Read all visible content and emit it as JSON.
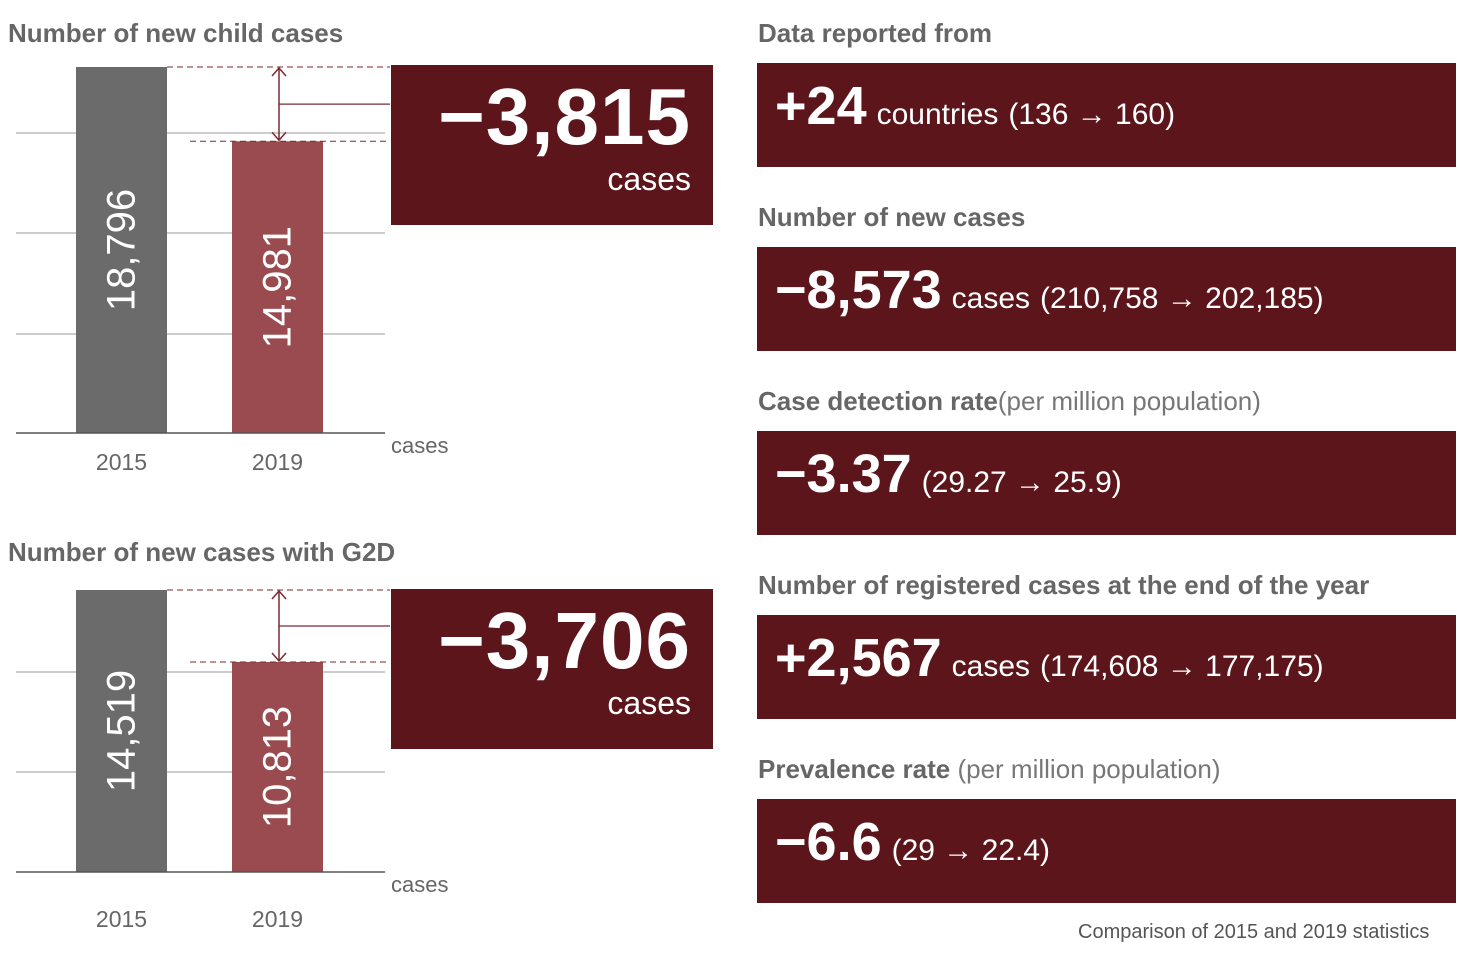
{
  "charts": [
    {
      "title": "Number of new child cases",
      "diff_value": "−3,815",
      "diff_unit": "cases",
      "unit_label": "cases"
    },
    {
      "title": "Number of new cases with G2D",
      "diff_value": "−3,706",
      "diff_unit": "cases",
      "unit_label": "cases"
    }
  ],
  "chart_data": [
    {
      "type": "bar",
      "title": "Number of new child cases",
      "categories": [
        "2015",
        "2019"
      ],
      "values": [
        18796,
        14981
      ],
      "value_labels": [
        "18,796",
        "14,981"
      ],
      "xlabel": "",
      "ylabel": "cases",
      "ylim": [
        0,
        18796
      ],
      "grid": true,
      "bar_colors": [
        "#6b6b6b",
        "#9a4b4f"
      ]
    },
    {
      "type": "bar",
      "title": "Number of new cases with G2D",
      "categories": [
        "2015",
        "2019"
      ],
      "values": [
        14519,
        10813
      ],
      "value_labels": [
        "14,519",
        "10,813"
      ],
      "xlabel": "",
      "ylabel": "cases",
      "ylim": [
        0,
        14519
      ],
      "grid": true,
      "bar_colors": [
        "#6b6b6b",
        "#9a4b4f"
      ]
    }
  ],
  "stats": [
    {
      "title": "Data reported from",
      "note": "",
      "value": "+24",
      "unit": "countries",
      "detail": "(136 → 160)"
    },
    {
      "title": "Number of new cases",
      "note": "",
      "value": "−8,573",
      "unit": "cases",
      "detail": "(210,758 → 202,185)"
    },
    {
      "title": "Case detection rate",
      "note": "(per million population)",
      "value": "−3.37",
      "unit": "",
      "detail": "(29.27 → 25.9)"
    },
    {
      "title": "Number of registered cases at the end of the year",
      "note": "",
      "value": "+2,567",
      "unit": "cases",
      "detail": "(174,608 → 177,175)"
    },
    {
      "title": "Prevalence rate",
      "note": " (per million population)",
      "value": "−6.6",
      "unit": "",
      "detail": "(29 → 22.4)"
    }
  ],
  "footnote": "Comparison of 2015 and 2019 statistics",
  "colors": {
    "box_bg": "#5c161b",
    "bar_2015": "#6b6b6b",
    "bar_2019": "#9a4b4f",
    "title_text": "#666666"
  }
}
